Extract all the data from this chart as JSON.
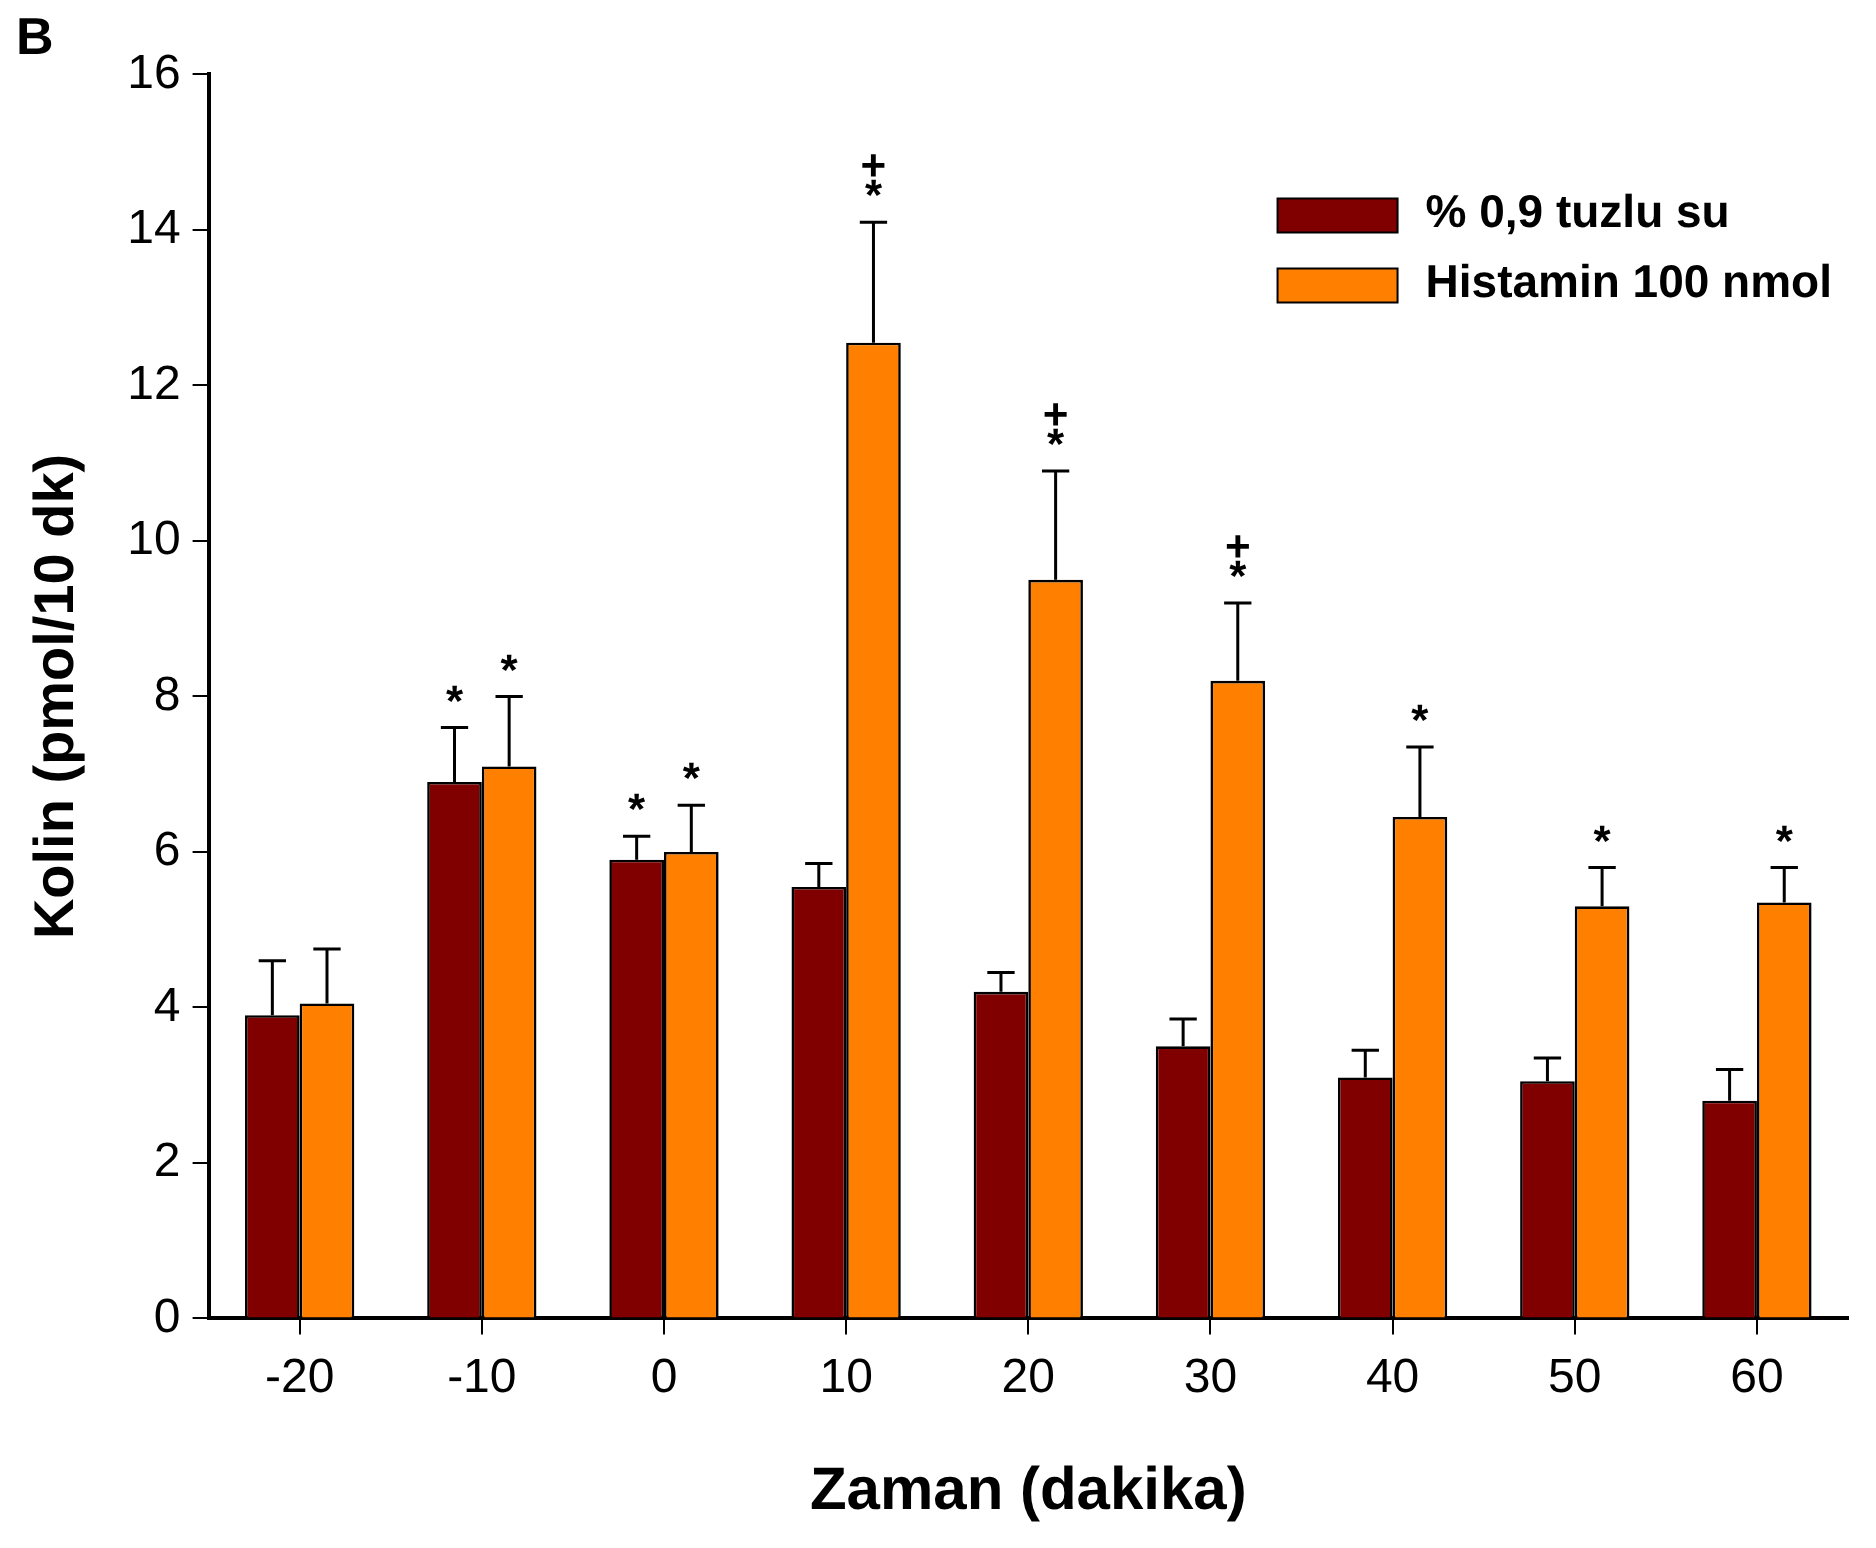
{
  "chart_data": {
    "type": "bar",
    "title": "B",
    "xlabel": "Zaman (dakika)",
    "ylabel": "Kolin (pmol/10 dk)",
    "categories": [
      "-20",
      "-10",
      "0",
      "10",
      "20",
      "30",
      "40",
      "50",
      "60"
    ],
    "series": [
      {
        "name": "% 0,9 tuzlu su",
        "color": "#800000",
        "values": [
          3.9,
          6.9,
          5.9,
          5.55,
          4.2,
          3.5,
          3.1,
          3.05,
          2.8
        ],
        "errors": [
          [
            3.9,
            4.6
          ],
          [
            6.9,
            7.6
          ],
          [
            5.9,
            6.2
          ],
          [
            5.55,
            5.85
          ],
          [
            4.2,
            4.45
          ],
          [
            3.5,
            3.85
          ],
          [
            3.1,
            3.45
          ],
          [
            3.05,
            3.35
          ],
          [
            2.8,
            3.2
          ]
        ]
      },
      {
        "name": "Histamin 100 nmol",
        "color": "#ff8000",
        "values": [
          4.05,
          7.1,
          6.0,
          12.55,
          9.5,
          8.2,
          6.45,
          5.3,
          5.35
        ],
        "errors": [
          [
            4.05,
            4.75
          ],
          [
            7.1,
            8.0
          ],
          [
            6.0,
            6.6
          ],
          [
            12.55,
            14.1
          ],
          [
            9.5,
            10.9
          ],
          [
            8.2,
            9.2
          ],
          [
            6.45,
            7.35
          ],
          [
            5.3,
            5.8
          ],
          [
            5.35,
            5.8
          ]
        ]
      }
    ],
    "ylim": [
      0,
      16
    ],
    "yticks": [
      0,
      2,
      4,
      6,
      8,
      10,
      12,
      14,
      16
    ],
    "grid": false,
    "legend": "top right",
    "annotations": [
      {
        "text": "*",
        "x": "-10",
        "y": 6.9
      },
      {
        "text": "*",
        "x": "-10",
        "y": 7.1
      },
      {
        "text": "*",
        "x": "0",
        "y": 5.9
      },
      {
        "text": "*",
        "x": "0",
        "y": 6.0
      },
      {
        "text": "*",
        "x": "10",
        "y": 12.55
      },
      "+",
      {
        "text": "*",
        "x": "20",
        "y": 9.5
      },
      "+",
      {
        "text": "*",
        "x": "30",
        "y": 8.2
      },
      "+",
      {
        "text": "*",
        "x": "40",
        "y": 6.45
      },
      {
        "text": "*",
        "x": "50",
        "y": 5.3
      },
      {
        "text": "*",
        "x": "60",
        "y": 5.35
      }
    ]
  }
}
